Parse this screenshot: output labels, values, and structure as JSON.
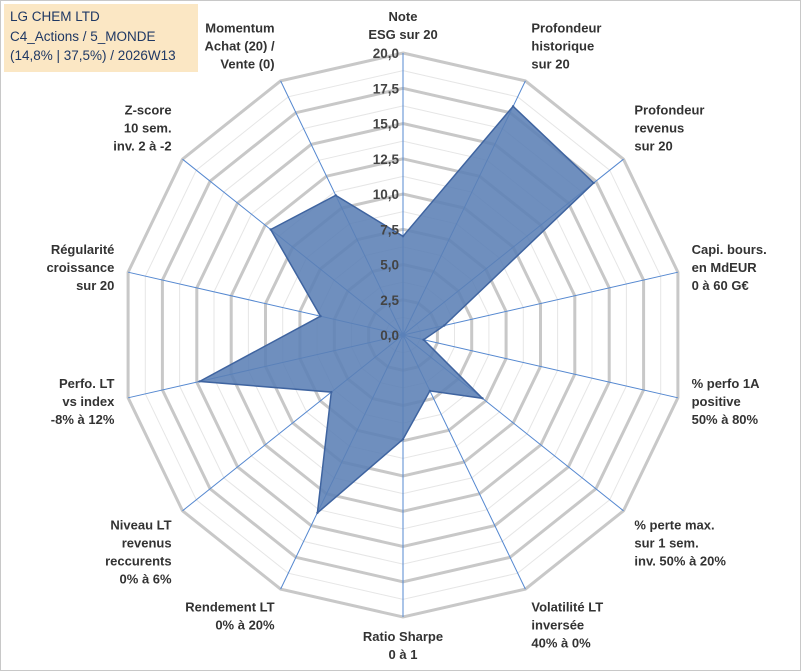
{
  "info": {
    "line1": "LG CHEM LTD",
    "line2": "C4_Actions / 5_MONDE",
    "line3": "(14,8% | 37,5%) / 2026W13"
  },
  "chart_data": {
    "type": "radar",
    "title": "LG CHEM LTD",
    "scale": {
      "min": 0,
      "max": 20,
      "step": 2.5
    },
    "tick_labels": [
      "0,0",
      "2,5",
      "5,0",
      "7,5",
      "10,0",
      "12,5",
      "15,0",
      "17,5",
      "20,0"
    ],
    "axes": [
      {
        "name": "note-esg",
        "label": [
          "Note",
          "ESG sur 20"
        ]
      },
      {
        "name": "profondeur-historique",
        "label": [
          "Profondeur",
          "historique",
          "sur 20"
        ]
      },
      {
        "name": "profondeur-revenus",
        "label": [
          "Profondeur",
          "revenus",
          "sur 20"
        ]
      },
      {
        "name": "capi-bours",
        "label": [
          "Capi. bours.",
          "en MdEUR",
          "0 à 60 G€"
        ]
      },
      {
        "name": "perfo-1a-positive",
        "label": [
          "% perfo 1A",
          "positive",
          "50% à 80%"
        ]
      },
      {
        "name": "perte-max",
        "label": [
          "% perte max.",
          "sur 1 sem.",
          "inv. 50% à 20%"
        ]
      },
      {
        "name": "volatilite-lt",
        "label": [
          "Volatilité LT",
          "inversée",
          "40% à 0%"
        ]
      },
      {
        "name": "ratio-sharpe",
        "label": [
          "Ratio Sharpe",
          "0 à 1"
        ]
      },
      {
        "name": "rendement-lt",
        "label": [
          "Rendement LT",
          "0% à 20%"
        ]
      },
      {
        "name": "niveau-lt-revenus",
        "label": [
          "Niveau LT",
          "revenus",
          "reccurents",
          "0% à 6%"
        ]
      },
      {
        "name": "perfo-lt-vs-index",
        "label": [
          "Perfo. LT",
          "vs index",
          "-8% à 12%"
        ]
      },
      {
        "name": "regularite-croissance",
        "label": [
          "Régularité",
          "croissance",
          "sur 20"
        ]
      },
      {
        "name": "z-score",
        "label": [
          "Z-score",
          "10 sem.",
          "inv. 2 à -2"
        ]
      },
      {
        "name": "momentum",
        "label": [
          "Momentum",
          "Achat (20) /",
          "Vente (0)"
        ]
      }
    ],
    "series": [
      {
        "name": "LG CHEM LTD",
        "values": [
          7.0,
          18.0,
          17.3,
          3.0,
          1.5,
          7.2,
          4.4,
          7.4,
          14.0,
          6.5,
          14.8,
          6.0,
          12.0,
          11.0
        ]
      }
    ],
    "colors": {
      "fill": "#5b7fb5",
      "stroke": "#3f64a0",
      "grid": "#c8c8c8",
      "spoke": "#5588d0"
    }
  }
}
